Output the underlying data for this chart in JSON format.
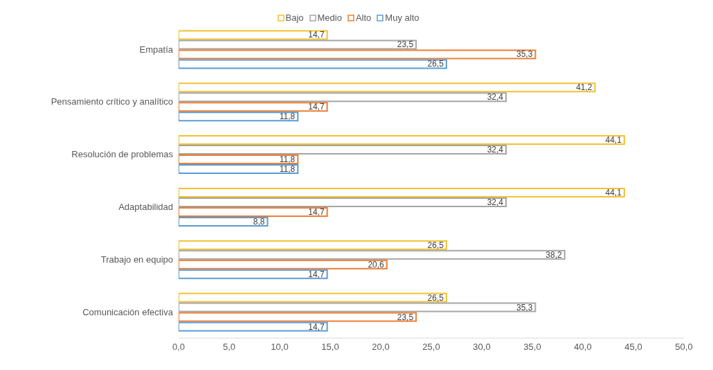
{
  "chart_data": {
    "type": "bar",
    "orientation": "horizontal",
    "categories": [
      "Empatía",
      "Pensamiento crítico y analítico",
      "Resolución de problemas",
      "Adaptabilidad",
      "Trabajo en equipo",
      "Comunicación efectiva"
    ],
    "series": [
      {
        "name": "Bajo",
        "color": "#f2c12e",
        "values": [
          14.7,
          41.2,
          44.1,
          44.1,
          26.5,
          26.5
        ],
        "value_labels": [
          "14,7",
          "41,2",
          "44,1",
          "44,1",
          "26,5",
          "26,5"
        ]
      },
      {
        "name": "Medio",
        "color": "#a5a5a5",
        "values": [
          23.5,
          32.4,
          32.4,
          32.4,
          38.2,
          35.3
        ],
        "value_labels": [
          "23,5",
          "32,4",
          "32,4",
          "32,4",
          "38,2",
          "35,3"
        ]
      },
      {
        "name": "Alto",
        "color": "#ed7d31",
        "values": [
          35.3,
          14.7,
          11.8,
          14.7,
          20.6,
          23.5
        ],
        "value_labels": [
          "35,3",
          "14,7",
          "11,8",
          "14,7",
          "20,6",
          "23,5"
        ]
      },
      {
        "name": "Muy alto",
        "color": "#5b9bd5",
        "values": [
          26.5,
          11.8,
          11.8,
          8.8,
          14.7,
          14.7
        ],
        "value_labels": [
          "26,5",
          "11,8",
          "11,8",
          "8,8",
          "14,7",
          "14,7"
        ]
      }
    ],
    "xlim": [
      0,
      50
    ],
    "xticks": [
      {
        "value": 0,
        "label": "0,0"
      },
      {
        "value": 5,
        "label": "5,0"
      },
      {
        "value": 10,
        "label": "10,0"
      },
      {
        "value": 15,
        "label": "15,0"
      },
      {
        "value": 20,
        "label": "20,0"
      },
      {
        "value": 25,
        "label": "25,0"
      },
      {
        "value": 30,
        "label": "30,0"
      },
      {
        "value": 35,
        "label": "35,0"
      },
      {
        "value": 40,
        "label": "40,0"
      },
      {
        "value": 45,
        "label": "45,0"
      },
      {
        "value": 50,
        "label": "50,0"
      }
    ],
    "grid": false,
    "legend": "top"
  }
}
